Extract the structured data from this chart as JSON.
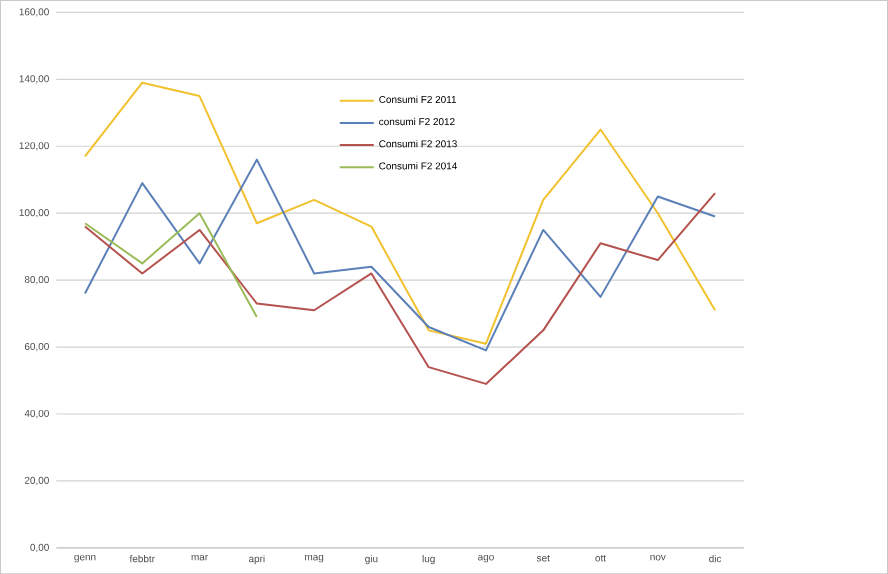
{
  "chart_data": {
    "type": "line",
    "categories": [
      "genn",
      "febbtr",
      "mar",
      "apri",
      "mag",
      "giu",
      "lug",
      "ago",
      "set",
      "ott",
      "nov",
      "dic"
    ],
    "series": [
      {
        "name": "Consumi F2 2011",
        "color": "#f2c12e",
        "values": [
          117,
          139,
          135,
          97,
          104,
          96,
          65,
          61,
          104,
          125,
          100,
          71
        ]
      },
      {
        "name": "consumi F2 2012",
        "color": "#5b80b8",
        "values": [
          76,
          109,
          85,
          116,
          82,
          84,
          66,
          59,
          95,
          75,
          105,
          99
        ]
      },
      {
        "name": "Consumi  F2 2013",
        "color": "#b5524e",
        "values": [
          96,
          82,
          95,
          73,
          71,
          82,
          54,
          49,
          65,
          91,
          86,
          106
        ]
      },
      {
        "name": "Consumi F2 2014",
        "color": "#9bbb59",
        "values": [
          97,
          85,
          100,
          69,
          null,
          null,
          null,
          null,
          null,
          null,
          null,
          null
        ]
      }
    ],
    "ylim": [
      0,
      160
    ],
    "yticks": [
      {
        "value": 0,
        "label": "0,00"
      },
      {
        "value": 20,
        "label": "20,00"
      },
      {
        "value": 40,
        "label": "40,00"
      },
      {
        "value": 60,
        "label": "60,00"
      },
      {
        "value": 80,
        "label": "80,00"
      },
      {
        "value": 100,
        "label": "100,00"
      },
      {
        "value": 120,
        "label": "120,00"
      },
      {
        "value": 140,
        "label": "140,00"
      },
      {
        "value": 160,
        "label": "160,00"
      }
    ],
    "grid": "y",
    "legend": "top",
    "marker": "none",
    "line_style": "solid"
  }
}
